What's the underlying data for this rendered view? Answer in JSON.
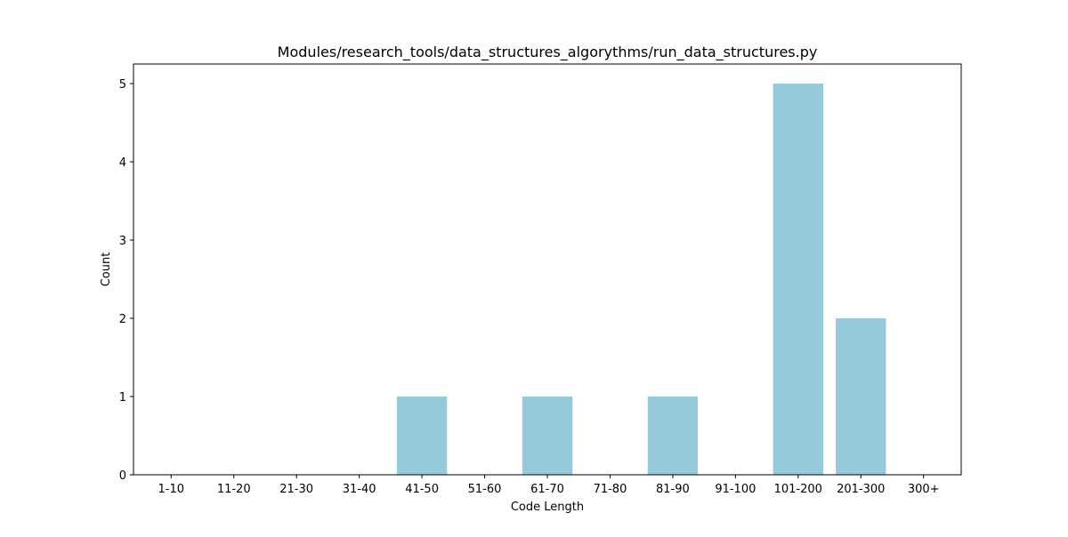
{
  "chart_data": {
    "type": "bar",
    "title": "Modules/research_tools/data_structures_algorythms/run_data_structures.py",
    "xlabel": "Code Length",
    "ylabel": "Count",
    "categories": [
      "1-10",
      "11-20",
      "21-30",
      "31-40",
      "41-50",
      "51-60",
      "61-70",
      "71-80",
      "81-90",
      "91-100",
      "101-200",
      "201-300",
      "300+"
    ],
    "values": [
      0,
      0,
      0,
      0,
      1,
      0,
      1,
      0,
      1,
      0,
      5,
      2,
      0
    ],
    "ylim": [
      0,
      5.25
    ],
    "yticks": [
      0,
      1,
      2,
      3,
      4,
      5
    ],
    "grid": false,
    "bar_color": "#96c9dc"
  }
}
